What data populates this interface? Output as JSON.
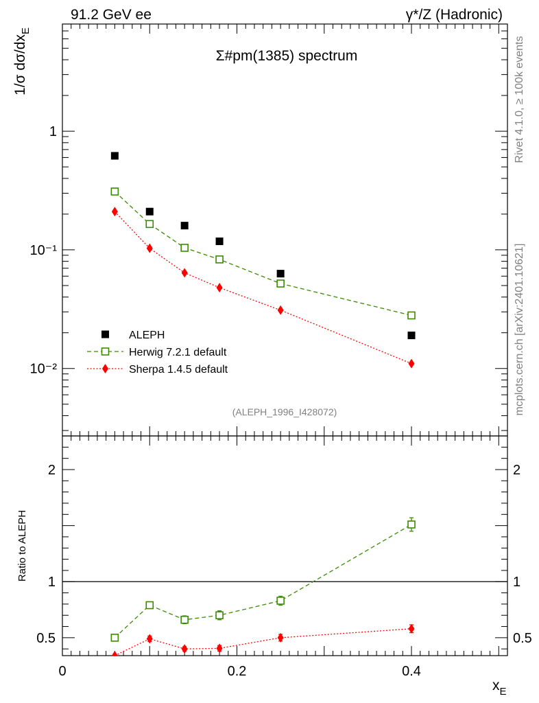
{
  "header": {
    "left": "91.2 GeV ee",
    "right": "γ*/Z (Hadronic)"
  },
  "side_labels": {
    "rivet": "Rivet 4.1.0, ≥ 100k events",
    "source": "mcplots.cern.ch [arXiv:2401.10621]"
  },
  "watermark": "(ALEPH_1996_I428072)",
  "chart_data": [
    {
      "type": "scatter",
      "title": "Σ#pm(1385) spectrum",
      "ylabel": "1/σ dσ/dx_E",
      "yscale": "log",
      "ylim": [
        0.0027,
        8.0
      ],
      "xlim": [
        0.0,
        0.51
      ],
      "ytick_labels": [
        "1",
        "10⁻¹",
        "10⁻²"
      ],
      "ytick_values": [
        1,
        0.1,
        0.01
      ],
      "legend": [
        "ALEPH",
        "Herwig 7.2.1 default",
        "Sherpa 1.4.5 default"
      ],
      "legend_position": "lower-left",
      "series": [
        {
          "name": "ALEPH",
          "color": "#000000",
          "marker": "filled-square",
          "x": [
            0.06,
            0.1,
            0.14,
            0.18,
            0.25,
            0.4
          ],
          "y": [
            0.62,
            0.21,
            0.16,
            0.118,
            0.063,
            0.019
          ]
        },
        {
          "name": "Herwig 7.2.1 default",
          "color": "#3a8a00",
          "marker": "open-square",
          "line": "dashed",
          "x": [
            0.06,
            0.1,
            0.14,
            0.18,
            0.25,
            0.4
          ],
          "y": [
            0.31,
            0.165,
            0.104,
            0.083,
            0.052,
            0.028
          ]
        },
        {
          "name": "Sherpa 1.4.5 default",
          "color": "#ff0000",
          "marker": "filled-diamond",
          "line": "dotted",
          "x": [
            0.06,
            0.1,
            0.14,
            0.18,
            0.25,
            0.4
          ],
          "y": [
            0.21,
            0.103,
            0.064,
            0.048,
            0.031,
            0.011
          ]
        }
      ]
    },
    {
      "type": "scatter",
      "ylabel": "Ratio to ALEPH",
      "xlabel": "x_E",
      "ylim": [
        0.34,
        2.3
      ],
      "xlim": [
        0.0,
        0.51
      ],
      "xtick_labels": [
        "0",
        "0.2",
        "0.4"
      ],
      "xtick_values": [
        0,
        0.2,
        0.4
      ],
      "ytick_labels": [
        "0.5",
        "1",
        "2"
      ],
      "ytick_values": [
        0.5,
        1,
        2
      ],
      "reference_line": 1,
      "series": [
        {
          "name": "Herwig 7.2.1 default",
          "color": "#3a8a00",
          "marker": "open-square",
          "line": "dashed",
          "x": [
            0.06,
            0.1,
            0.14,
            0.18,
            0.25,
            0.4
          ],
          "y": [
            0.5,
            0.79,
            0.66,
            0.7,
            0.83,
            1.51
          ],
          "err": [
            0.0,
            0.03,
            0.035,
            0.04,
            0.04,
            0.06
          ]
        },
        {
          "name": "Sherpa 1.4.5 default",
          "color": "#ff0000",
          "marker": "filled-diamond",
          "line": "dotted",
          "x": [
            0.06,
            0.1,
            0.14,
            0.18,
            0.25,
            0.4
          ],
          "y": [
            0.34,
            0.49,
            0.4,
            0.405,
            0.5,
            0.58
          ],
          "err": [
            0.0,
            0.025,
            0.02,
            0.025,
            0.03,
            0.035
          ]
        }
      ]
    }
  ]
}
